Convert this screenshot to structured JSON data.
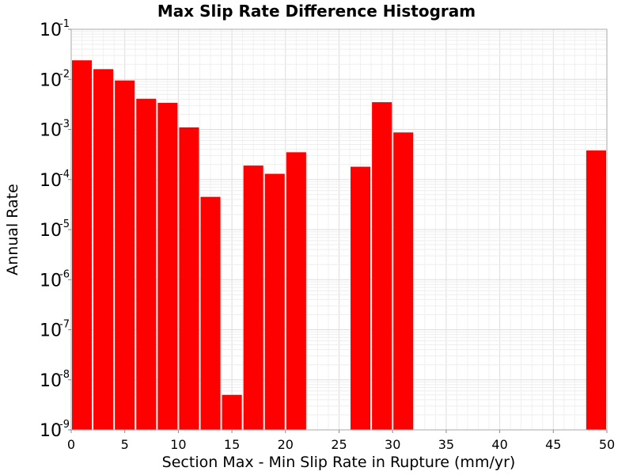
{
  "chart_data": {
    "type": "bar",
    "title": "Max Slip Rate Difference Histogram",
    "xlabel": "Section Max - Min Slip Rate in Rupture (mm/yr)",
    "ylabel": "Annual Rate",
    "xlim": [
      0,
      50
    ],
    "ylim": [
      1e-09,
      0.1
    ],
    "yscale": "log",
    "grid": true,
    "bar_width": 2,
    "bar_color": "#ff0000",
    "x": [
      1,
      3,
      5,
      7,
      9,
      11,
      13,
      15,
      17,
      19,
      21,
      27,
      29,
      31,
      49
    ],
    "values": [
      0.024,
      0.016,
      0.0095,
      0.0041,
      0.0034,
      0.0011,
      4.5e-05,
      5e-09,
      0.00019,
      0.00013,
      0.00035,
      0.00018,
      0.0035,
      0.00087,
      0.00038
    ],
    "xticks": [
      {
        "value": 0,
        "label": "0"
      },
      {
        "value": 5,
        "label": "5"
      },
      {
        "value": 10,
        "label": "10"
      },
      {
        "value": 15,
        "label": "15"
      },
      {
        "value": 20,
        "label": "20"
      },
      {
        "value": 25,
        "label": "25"
      },
      {
        "value": 30,
        "label": "30"
      },
      {
        "value": 35,
        "label": "35"
      },
      {
        "value": 40,
        "label": "40"
      },
      {
        "value": 45,
        "label": "45"
      },
      {
        "value": 50,
        "label": "50"
      }
    ],
    "yticks": [
      {
        "exp": -1,
        "base": "10",
        "sup": "-1"
      },
      {
        "exp": -2,
        "base": "10",
        "sup": "-2"
      },
      {
        "exp": -3,
        "base": "10",
        "sup": "-3"
      },
      {
        "exp": -4,
        "base": "10",
        "sup": "-4"
      },
      {
        "exp": -5,
        "base": "10",
        "sup": "-5"
      },
      {
        "exp": -6,
        "base": "10",
        "sup": "-6"
      },
      {
        "exp": -7,
        "base": "10",
        "sup": "-7"
      },
      {
        "exp": -8,
        "base": "10",
        "sup": "-8"
      },
      {
        "exp": -9,
        "base": "10",
        "sup": "-9"
      }
    ]
  }
}
